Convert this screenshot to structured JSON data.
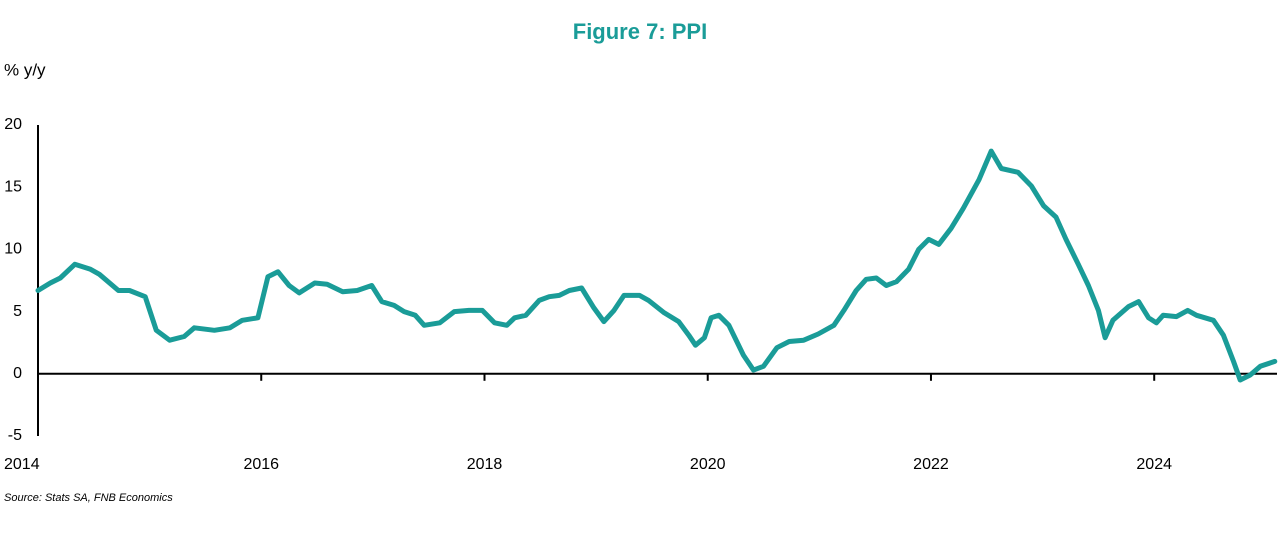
{
  "chart_data": {
    "type": "line",
    "title": "Figure 7: PPI",
    "y_label": "% y/y",
    "source": "Source: Stats SA, FNB Economics",
    "x": [
      2014.0,
      2014.11,
      2014.2,
      2014.33,
      2014.47,
      2014.55,
      2014.72,
      2014.82,
      2014.96,
      2015.06,
      2015.18,
      2015.31,
      2015.4,
      2015.58,
      2015.72,
      2015.83,
      2015.97,
      2016.06,
      2016.15,
      2016.25,
      2016.34,
      2016.48,
      2016.59,
      2016.73,
      2016.86,
      2016.99,
      2017.08,
      2017.19,
      2017.28,
      2017.38,
      2017.46,
      2017.6,
      2017.73,
      2017.86,
      2017.98,
      2018.09,
      2018.2,
      2018.27,
      2018.37,
      2018.49,
      2018.58,
      2018.67,
      2018.76,
      2018.87,
      2018.98,
      2019.07,
      2019.16,
      2019.25,
      2019.39,
      2019.47,
      2019.61,
      2019.74,
      2019.83,
      2019.89,
      2019.97,
      2020.03,
      2020.1,
      2020.19,
      2020.32,
      2020.41,
      2020.5,
      2020.62,
      2020.73,
      2020.86,
      2020.99,
      2021.13,
      2021.22,
      2021.33,
      2021.42,
      2021.51,
      2021.6,
      2021.69,
      2021.8,
      2021.89,
      2021.98,
      2022.07,
      2022.18,
      2022.29,
      2022.43,
      2022.54,
      2022.63,
      2022.78,
      2022.9,
      2023.01,
      2023.12,
      2023.21,
      2023.32,
      2023.41,
      2023.5,
      2023.56,
      2023.63,
      2023.77,
      2023.86,
      2023.95,
      2024.02,
      2024.08,
      2024.2,
      2024.3,
      2024.38,
      2024.53,
      2024.62,
      2024.71,
      2024.77,
      2024.86,
      2024.95,
      2025.08
    ],
    "series": [
      {
        "name": "PPI",
        "color": "#1a9c98",
        "values": [
          6.7,
          7.3,
          7.7,
          8.8,
          8.4,
          8.0,
          6.7,
          6.7,
          6.2,
          3.5,
          2.7,
          3.0,
          3.7,
          3.5,
          3.7,
          4.3,
          4.5,
          7.8,
          8.2,
          7.1,
          6.5,
          7.3,
          7.2,
          6.6,
          6.7,
          7.1,
          5.8,
          5.5,
          5.0,
          4.7,
          3.9,
          4.1,
          5.0,
          5.1,
          5.1,
          4.1,
          3.9,
          4.5,
          4.7,
          5.9,
          6.2,
          6.3,
          6.7,
          6.9,
          5.3,
          4.2,
          5.1,
          6.3,
          6.3,
          5.9,
          4.9,
          4.2,
          3.1,
          2.3,
          2.9,
          4.5,
          4.7,
          3.9,
          1.5,
          0.3,
          0.6,
          2.1,
          2.6,
          2.7,
          3.2,
          3.9,
          5.1,
          6.7,
          7.6,
          7.7,
          7.1,
          7.4,
          8.4,
          10.0,
          10.8,
          10.4,
          11.7,
          13.3,
          15.6,
          17.9,
          16.5,
          16.2,
          15.1,
          13.5,
          12.6,
          10.8,
          8.8,
          7.1,
          5.1,
          2.9,
          4.3,
          5.4,
          5.8,
          4.5,
          4.1,
          4.7,
          4.6,
          5.1,
          4.7,
          4.3,
          3.1,
          1.0,
          -0.5,
          -0.1,
          0.6,
          1.0
        ]
      }
    ],
    "xlim": [
      2014,
      2025.1
    ],
    "xticks": [
      2014,
      2016,
      2018,
      2020,
      2022,
      2024
    ],
    "ylim": [
      -5,
      20
    ],
    "yticks": [
      -5,
      0,
      5,
      10,
      15,
      20
    ],
    "grid": false
  }
}
